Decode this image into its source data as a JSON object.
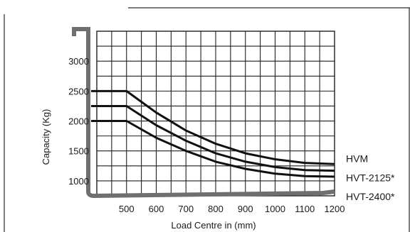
{
  "chart_data": {
    "type": "line",
    "xlabel": "Load Centre in (mm)",
    "ylabel": "Capacity (Kg)",
    "x_ticks": [
      "500",
      "600",
      "700",
      "800",
      "900",
      "1000",
      "1100",
      "1200"
    ],
    "y_ticks": [
      "1000",
      "1500",
      "2000",
      "2500",
      "3000"
    ],
    "xlim": [
      400,
      1200
    ],
    "ylim": [
      750,
      3500
    ],
    "grid": true,
    "x": [
      400,
      500,
      600,
      700,
      800,
      900,
      1000,
      1100,
      1200
    ],
    "series": [
      {
        "name": "HVM",
        "values": [
          2500,
          2500,
          2140,
          1840,
          1620,
          1460,
          1360,
          1300,
          1280
        ]
      },
      {
        "name": "HVT-2125*",
        "values": [
          2250,
          2250,
          1930,
          1670,
          1460,
          1320,
          1230,
          1180,
          1170
        ]
      },
      {
        "name": "HVT-2400*",
        "values": [
          2000,
          2000,
          1720,
          1500,
          1320,
          1200,
          1120,
          1080,
          1070
        ]
      }
    ]
  }
}
